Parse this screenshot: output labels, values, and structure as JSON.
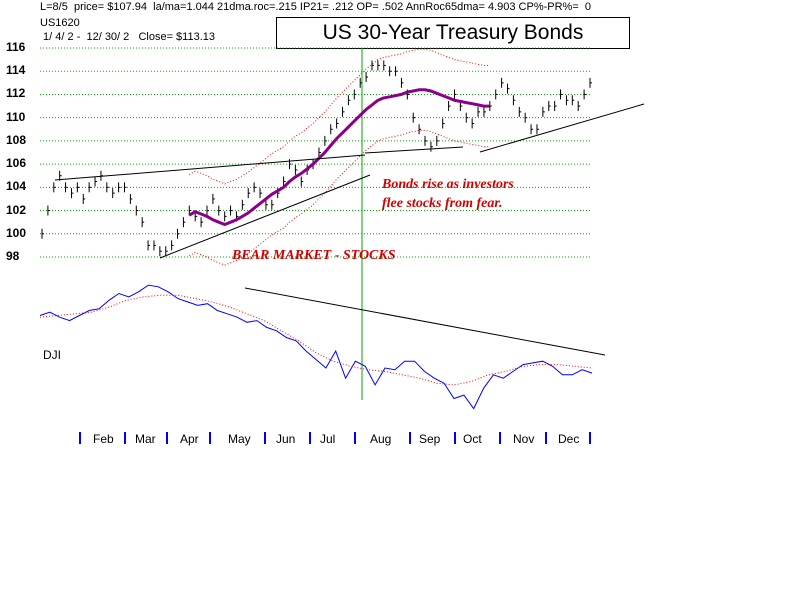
{
  "header": {
    "line1": "L=8/5  price= $107.94  la/ma=1.044 21dma.roc=.215 IP21= .212 OP= .502 AnnRoc65dma= 4.903 CP%-PR%=  0",
    "line2": "US1620",
    "line3": " 1/ 4/ 2 -  12/ 30/ 2   Close= $113.13"
  },
  "chart_data": {
    "type": "line",
    "title": "US 30-Year Treasury Bonds",
    "ylim": [
      98,
      116
    ],
    "yticks": [
      "116",
      "114",
      "112",
      "110",
      "108",
      "106",
      "104",
      "102",
      "100",
      "98"
    ],
    "months": [
      "Feb",
      "Mar",
      "Apr",
      "May",
      "Jun",
      "Jul",
      "Aug",
      "Sep",
      "Oct",
      "Nov",
      "Dec"
    ],
    "price": [
      100,
      102,
      104,
      105,
      104,
      103.5,
      104,
      103,
      104,
      104.5,
      105,
      104,
      103.5,
      104,
      104,
      103,
      102,
      101,
      99,
      99,
      98.5,
      98.5,
      99,
      100,
      101,
      102,
      101.5,
      101,
      102,
      103,
      102,
      101.5,
      102,
      101.5,
      102.5,
      103.5,
      104,
      103.5,
      102.5,
      102.5,
      103.5,
      104.5,
      106,
      105.5,
      104.5,
      105.5,
      106,
      107,
      108,
      109,
      109.5,
      110.5,
      111.5,
      112,
      113,
      113.5,
      114.5,
      114.5,
      114.5,
      114,
      114,
      113,
      112,
      110,
      109,
      108,
      107.5,
      108,
      109.5,
      111,
      112,
      111,
      110,
      109.5,
      110.5,
      110.5,
      111,
      112,
      113,
      112.5,
      111.5,
      110.5,
      110,
      109,
      109,
      110.5,
      111,
      111,
      112,
      111.5,
      111.5,
      111,
      112,
      113
    ],
    "ma21": [
      null,
      null,
      null,
      null,
      null,
      null,
      null,
      null,
      null,
      null,
      null,
      null,
      null,
      null,
      null,
      null,
      null,
      null,
      null,
      null,
      null,
      null,
      null,
      null,
      null,
      101.6,
      101.9,
      101.7,
      101.5,
      101.2,
      101,
      100.8,
      101,
      101.2,
      101.5,
      101.8,
      102.2,
      102.6,
      103,
      103.4,
      103.7,
      104,
      104.5,
      104.9,
      105.2,
      105.6,
      106,
      106.5,
      107,
      107.6,
      108.2,
      108.7,
      109.2,
      109.7,
      110.2,
      110.7,
      111.1,
      111.5,
      111.7,
      111.8,
      111.9,
      112,
      112.2,
      112.3,
      112.4,
      112.4,
      112.3,
      112.1,
      111.9,
      111.7,
      111.5,
      111.4,
      111.3,
      111.2,
      111.1,
      111,
      111
    ],
    "dji": [
      10250,
      10350,
      10200,
      10100,
      10250,
      10400,
      10450,
      10700,
      10900,
      10800,
      10950,
      11150,
      11100,
      10950,
      10750,
      10650,
      10550,
      10600,
      10400,
      10300,
      10200,
      10050,
      10100,
      9900,
      9800,
      9600,
      9500,
      9200,
      8950,
      8700,
      9200,
      8400,
      8900,
      8750,
      8200,
      8700,
      8650,
      8900,
      8900,
      8600,
      8400,
      8250,
      7800,
      7900,
      7500,
      8100,
      8500,
      8400,
      8600,
      8800,
      8850,
      8900,
      8750,
      8500,
      8500,
      8650,
      8550
    ],
    "dji_ma": [
      10200,
      10250,
      10300,
      10350,
      10500,
      10700,
      10800,
      10850,
      10850,
      10750,
      10650,
      10500,
      10300,
      10100,
      9800,
      9500,
      9150,
      8900,
      8750,
      8650,
      8600,
      8500,
      8400,
      8250,
      8200,
      8300,
      8500,
      8600,
      8750,
      8800,
      8800,
      8750,
      8700
    ]
  },
  "annotations": {
    "bear_market": "BEAR MARKET - STOCKS",
    "bonds_line1": "Bonds rise as investors",
    "bonds_line2": "flee stocks from fear.",
    "dji_label": "DJI"
  },
  "colors": {
    "grid": "#00aa00",
    "price": "#000000",
    "ma": "#8b008b",
    "band": "#ff0000",
    "dji": "#0000ff",
    "dji_ma": "#ff0000",
    "annotation": "#d00000",
    "axis_ticks": "#0000ff"
  }
}
